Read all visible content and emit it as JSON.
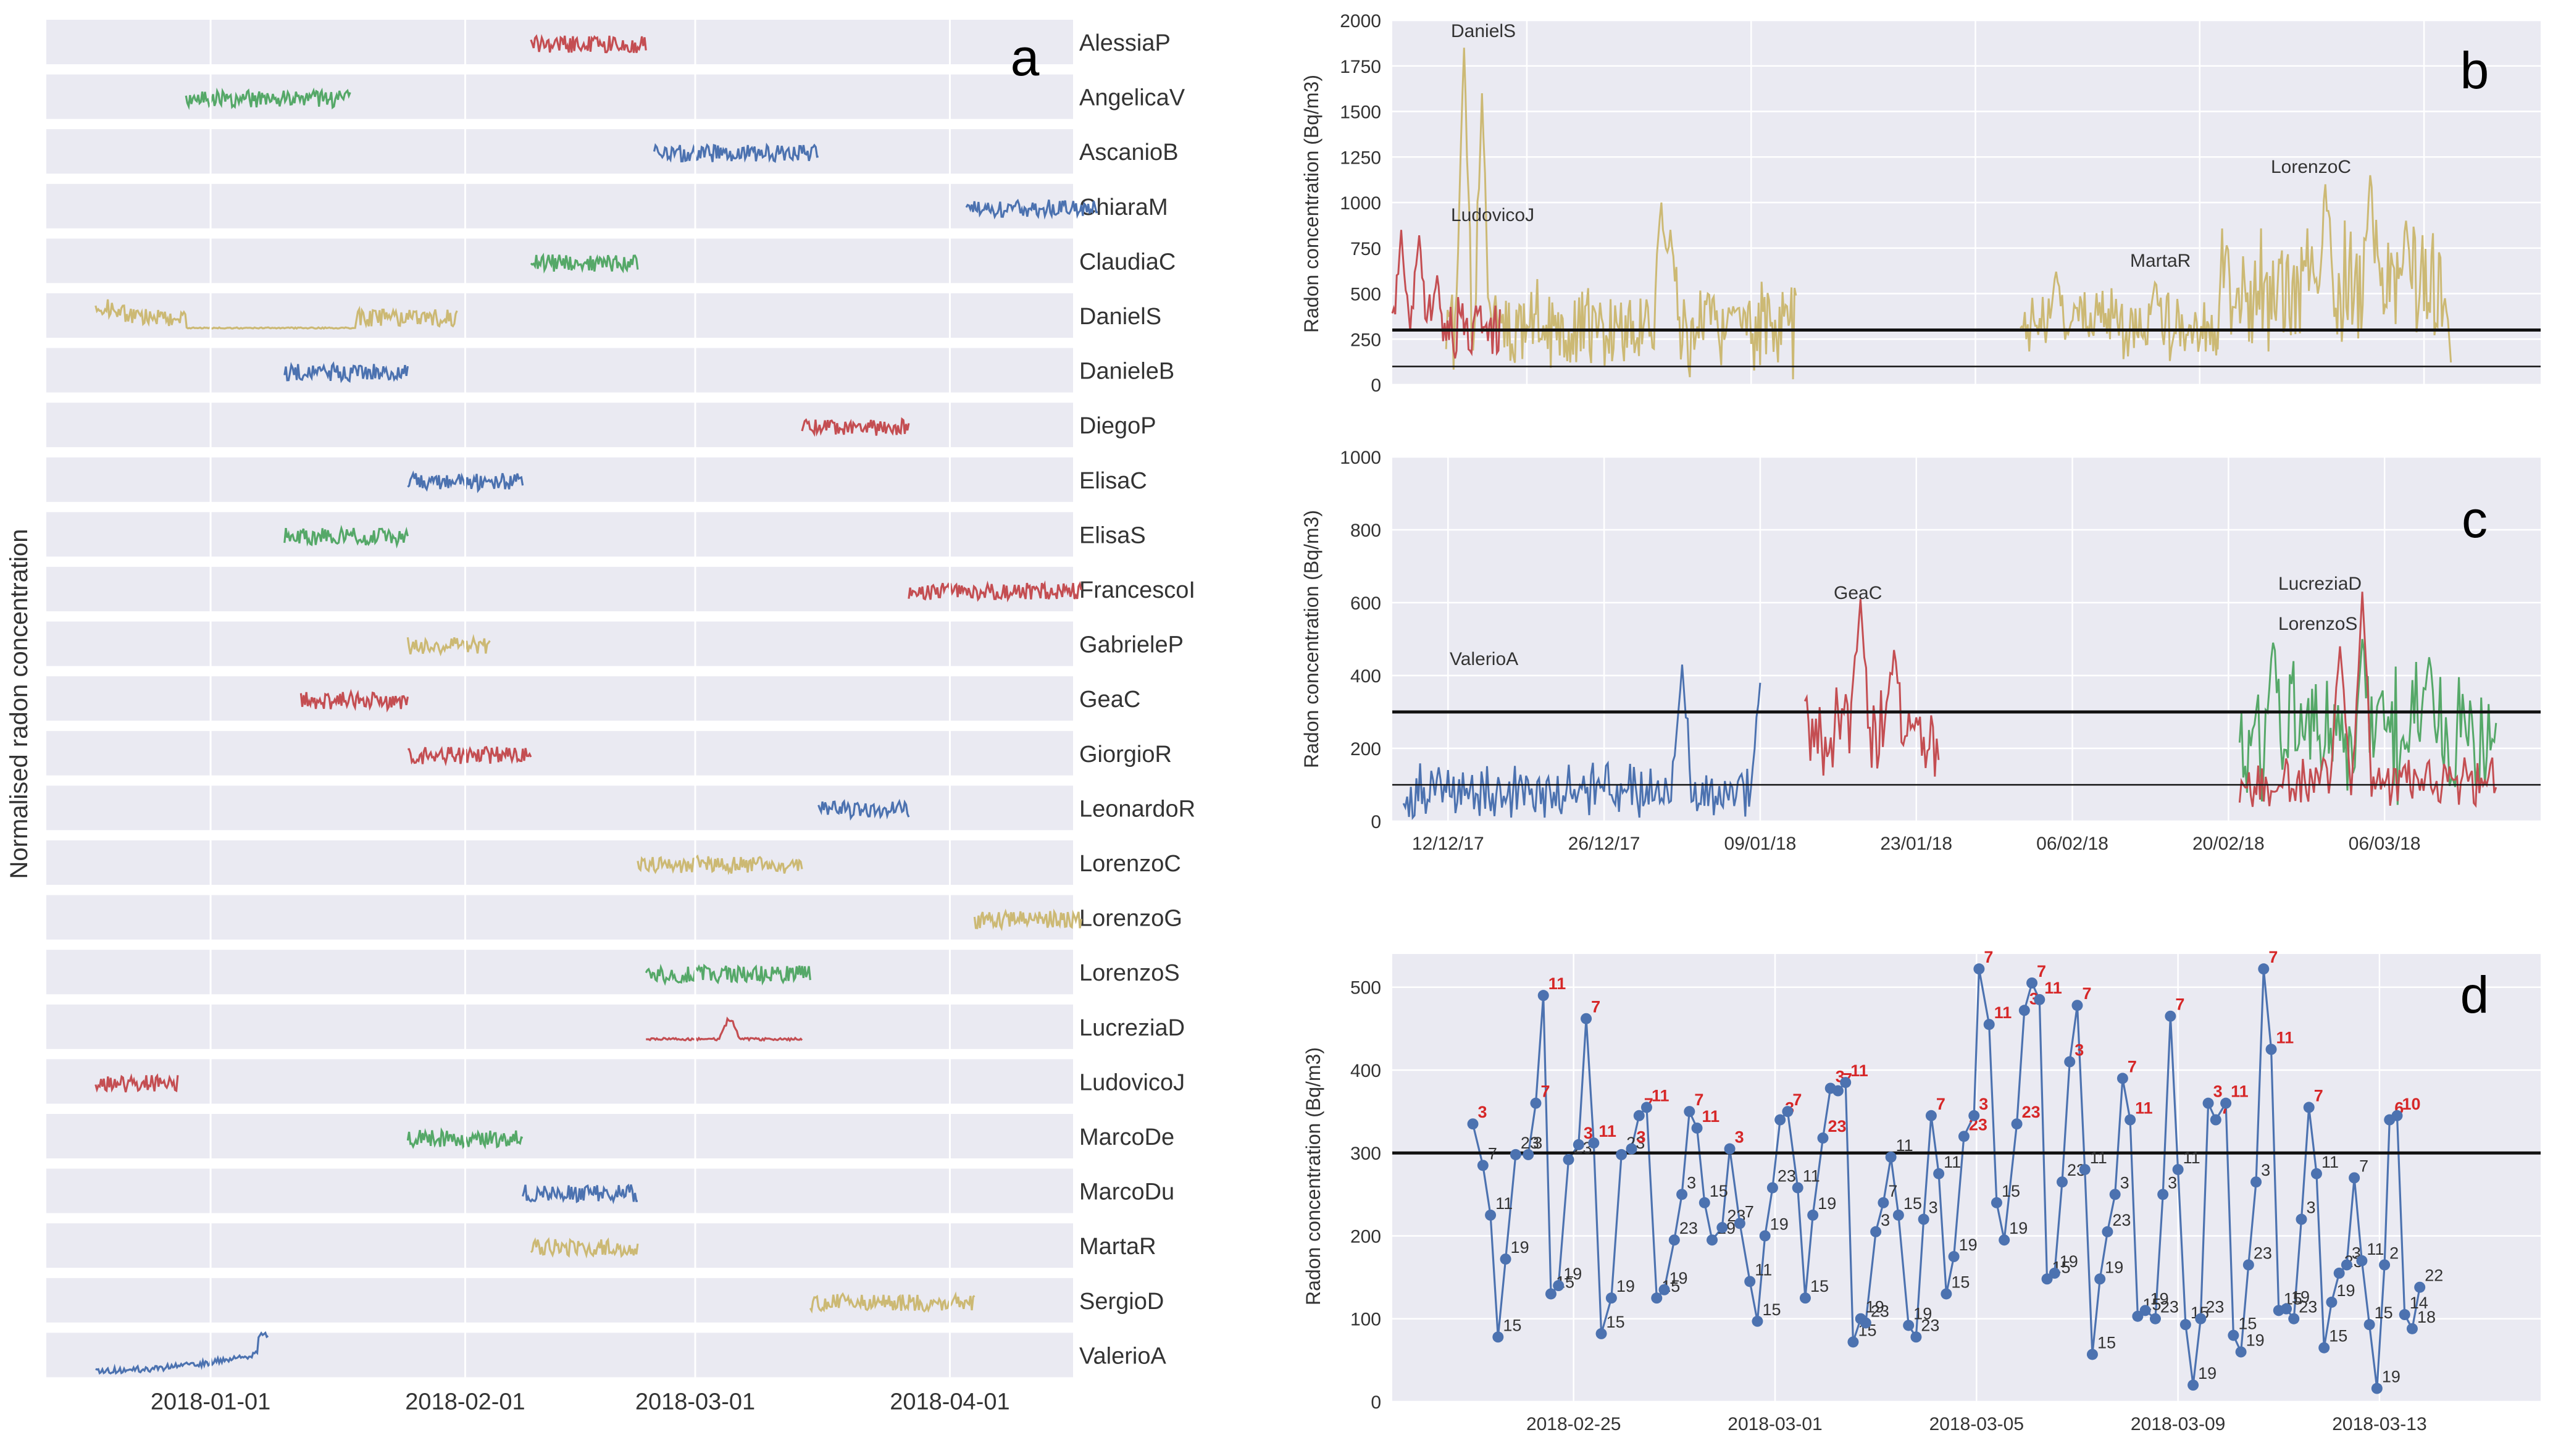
{
  "chart_data": [
    {
      "panel": "a",
      "type": "line",
      "ylabel": "Normalised radon concentration",
      "xlabel": "",
      "xlim": [
        "2017-12-12",
        "2018-04-16"
      ],
      "x_ticks": [
        "2018-01-01",
        "2018-02-01",
        "2018-03-01",
        "2018-04-01"
      ],
      "grid": true,
      "rows": [
        {
          "name": "AlessiaP",
          "color": "#c44e52",
          "start": "2018-02-09",
          "end": "2018-02-23"
        },
        {
          "name": "AngelicaV",
          "color": "#55a868",
          "start": "2017-12-29",
          "end": "2018-01-18"
        },
        {
          "name": "AscanioB",
          "color": "#4c72b0",
          "start": "2018-02-24",
          "end": "2018-03-16"
        },
        {
          "name": "ChiaraM",
          "color": "#4c72b0",
          "start": "2018-04-03",
          "end": "2018-04-19"
        },
        {
          "name": "ClaudiaC",
          "color": "#55a868",
          "start": "2018-02-09",
          "end": "2018-02-22"
        },
        {
          "name": "DanielS",
          "color": "#ccb974",
          "start": "2017-12-18",
          "end": "2018-01-31"
        },
        {
          "name": "DanieleB",
          "color": "#4c72b0",
          "start": "2018-01-10",
          "end": "2018-01-25"
        },
        {
          "name": "DiegoP",
          "color": "#c44e52",
          "start": "2018-03-14",
          "end": "2018-03-27"
        },
        {
          "name": "ElisaC",
          "color": "#4c72b0",
          "start": "2018-01-25",
          "end": "2018-02-08"
        },
        {
          "name": "ElisaS",
          "color": "#55a868",
          "start": "2018-01-10",
          "end": "2018-01-25"
        },
        {
          "name": "FrancescoI",
          "color": "#c44e52",
          "start": "2018-03-27",
          "end": "2018-04-17"
        },
        {
          "name": "GabrieleP",
          "color": "#ccb974",
          "start": "2018-01-25",
          "end": "2018-02-04"
        },
        {
          "name": "GeaC",
          "color": "#c44e52",
          "start": "2018-01-12",
          "end": "2018-01-25"
        },
        {
          "name": "GiorgioR",
          "color": "#c44e52",
          "start": "2018-01-25",
          "end": "2018-02-09"
        },
        {
          "name": "LeonardoR",
          "color": "#4c72b0",
          "start": "2018-03-16",
          "end": "2018-03-27"
        },
        {
          "name": "LorenzoC",
          "color": "#ccb974",
          "start": "2018-02-22",
          "end": "2018-03-14"
        },
        {
          "name": "LorenzoG",
          "color": "#ccb974",
          "start": "2018-04-04",
          "end": "2018-04-17"
        },
        {
          "name": "LorenzoS",
          "color": "#55a868",
          "start": "2018-02-23",
          "end": "2018-03-15"
        },
        {
          "name": "LucreziaD",
          "color": "#c44e52",
          "start": "2018-02-23",
          "end": "2018-03-14"
        },
        {
          "name": "LudovicoJ",
          "color": "#c44e52",
          "start": "2017-12-18",
          "end": "2017-12-28"
        },
        {
          "name": "MarcoDe",
          "color": "#55a868",
          "start": "2018-01-25",
          "end": "2018-02-08"
        },
        {
          "name": "MarcoDu",
          "color": "#4c72b0",
          "start": "2018-02-08",
          "end": "2018-02-22"
        },
        {
          "name": "MartaR",
          "color": "#ccb974",
          "start": "2018-02-09",
          "end": "2018-02-22"
        },
        {
          "name": "SergioD",
          "color": "#ccb974",
          "start": "2018-03-15",
          "end": "2018-04-04"
        },
        {
          "name": "ValerioA",
          "color": "#4c72b0",
          "start": "2017-12-18",
          "end": "2018-01-08"
        }
      ]
    },
    {
      "panel": "b",
      "type": "line",
      "ylabel": "Radon concentration (Bq/m3)",
      "ylim": [
        0,
        2000
      ],
      "y_ticks": [
        0,
        250,
        500,
        750,
        1000,
        1250,
        1500,
        1750,
        2000
      ],
      "thresholds": [
        300,
        100
      ],
      "x_range_days": [
        0,
        128
      ],
      "series": [
        {
          "name": "DanielS",
          "color": "#ccb974",
          "start_day": 6,
          "end_day": 45,
          "base": 320,
          "amp": 300,
          "peaks": [
            [
              8,
              1850
            ],
            [
              10,
              1600
            ],
            [
              30,
              1000
            ],
            [
              31,
              850
            ],
            [
              38,
              430
            ]
          ]
        },
        {
          "name": "LudovicoJ",
          "color": "#c44e52",
          "start_day": 0,
          "end_day": 12,
          "base": 320,
          "amp": 250,
          "peaks": [
            [
              1,
              850
            ],
            [
              3,
              820
            ],
            [
              5,
              600
            ]
          ]
        },
        {
          "name": "MartaR",
          "color": "#ccb974",
          "start_day": 70,
          "end_day": 92,
          "base": 330,
          "amp": 220,
          "peaks": [
            [
              74,
              620
            ],
            [
              85,
              560
            ]
          ]
        },
        {
          "name": "LorenzoC",
          "color": "#ccb974",
          "start_day": 92,
          "end_day": 118,
          "base": 520,
          "amp": 420,
          "peaks": [
            [
              104,
              1100
            ],
            [
              109,
              1150
            ],
            [
              113,
              900
            ]
          ]
        }
      ],
      "annotations": [
        "DanielS",
        "LudovicoJ",
        "MartaR",
        "LorenzoC"
      ]
    },
    {
      "panel": "c",
      "type": "line",
      "ylabel": "Radon concentration (Bq/m3)",
      "ylim": [
        0,
        1000
      ],
      "y_ticks": [
        0,
        200,
        400,
        600,
        800,
        1000
      ],
      "thresholds": [
        300,
        100
      ],
      "x_ticks": [
        "12/12/17",
        "26/12/17",
        "09/01/18",
        "23/01/18",
        "06/02/18",
        "20/02/18",
        "06/03/18"
      ],
      "x_range_days": [
        -5,
        98
      ],
      "series": [
        {
          "name": "ValerioA",
          "color": "#4c72b0",
          "start_day": -4,
          "end_day": 28,
          "base": 80,
          "amp": 90,
          "peaks": [
            [
              21,
              430
            ],
            [
              28,
              380
            ]
          ]
        },
        {
          "name": "GeaC",
          "color": "#c44e52",
          "start_day": 32,
          "end_day": 44,
          "base": 240,
          "amp": 140,
          "peaks": [
            [
              37,
              610
            ],
            [
              40,
              470
            ]
          ]
        },
        {
          "name": "LorenzoS",
          "color": "#55a868",
          "start_day": 71,
          "end_day": 94,
          "base": 230,
          "amp": 230,
          "peaks": [
            [
              74,
              490
            ],
            [
              82,
              500
            ],
            [
              88,
              450
            ]
          ]
        },
        {
          "name": "LucreziaD",
          "color": "#c44e52",
          "start_day": 71,
          "end_day": 94,
          "base": 110,
          "amp": 90,
          "peaks": [
            [
              82,
              630
            ],
            [
              80,
              480
            ]
          ]
        }
      ],
      "annotations": [
        "ValerioA",
        "GeaC",
        "LucreziaD",
        "LorenzoS"
      ]
    },
    {
      "panel": "d",
      "type": "line",
      "ylabel": "Radon concentration (Bq/m3)",
      "ylim": [
        0,
        540
      ],
      "y_ticks": [
        0,
        100,
        200,
        300,
        400,
        500
      ],
      "threshold": 300,
      "x_ticks": [
        "2018-02-25",
        "2018-03-01",
        "2018-03-05",
        "2018-03-09",
        "2018-03-13"
      ],
      "x_range_days": [
        -3.6,
        19.2
      ],
      "points": [
        [
          -2.0,
          335,
          "3"
        ],
        [
          -1.8,
          285,
          "7"
        ],
        [
          -1.65,
          225,
          "11"
        ],
        [
          -1.5,
          78,
          "15"
        ],
        [
          -1.35,
          172,
          "19"
        ],
        [
          -1.15,
          298,
          "23"
        ],
        [
          -0.9,
          298,
          "3"
        ],
        [
          -0.75,
          360,
          "7"
        ],
        [
          -0.6,
          490,
          "11"
        ],
        [
          -0.45,
          130,
          "15"
        ],
        [
          -0.3,
          140,
          "19"
        ],
        [
          -0.1,
          292,
          "23"
        ],
        [
          0.1,
          310,
          "3"
        ],
        [
          0.25,
          462,
          "7"
        ],
        [
          0.4,
          312,
          "11"
        ],
        [
          0.55,
          82,
          "15"
        ],
        [
          0.75,
          125,
          "19"
        ],
        [
          0.95,
          298,
          "23"
        ],
        [
          1.15,
          305,
          "3"
        ],
        [
          1.3,
          345,
          "7"
        ],
        [
          1.45,
          355,
          "11"
        ],
        [
          1.65,
          125,
          "15"
        ],
        [
          1.8,
          135,
          "19"
        ],
        [
          2.0,
          195,
          "23"
        ],
        [
          2.15,
          250,
          "3"
        ],
        [
          2.3,
          350,
          "7"
        ],
        [
          2.45,
          330,
          "11"
        ],
        [
          2.6,
          240,
          "15"
        ],
        [
          2.75,
          195,
          "19"
        ],
        [
          2.95,
          210,
          "23"
        ],
        [
          3.1,
          305,
          "3"
        ],
        [
          3.3,
          215,
          "7"
        ],
        [
          3.5,
          145,
          "11"
        ],
        [
          3.65,
          97,
          "15"
        ],
        [
          3.8,
          200,
          "19"
        ],
        [
          3.95,
          258,
          "23"
        ],
        [
          4.1,
          340,
          "3"
        ],
        [
          4.25,
          350,
          "7"
        ],
        [
          4.45,
          258,
          "11"
        ],
        [
          4.6,
          125,
          "15"
        ],
        [
          4.75,
          225,
          "19"
        ],
        [
          4.95,
          318,
          "23"
        ],
        [
          5.1,
          378,
          "3"
        ],
        [
          5.25,
          375,
          "7"
        ],
        [
          5.4,
          385,
          "11"
        ],
        [
          5.55,
          72,
          "15"
        ],
        [
          5.7,
          100,
          "19"
        ],
        [
          5.8,
          95,
          "23"
        ],
        [
          6.0,
          205,
          "3"
        ],
        [
          6.15,
          240,
          "7"
        ],
        [
          6.3,
          295,
          "11"
        ],
        [
          6.45,
          225,
          "15"
        ],
        [
          6.65,
          92,
          "19"
        ],
        [
          6.8,
          78,
          "23"
        ],
        [
          6.95,
          220,
          "3"
        ],
        [
          7.1,
          345,
          "7"
        ],
        [
          7.25,
          275,
          "11"
        ],
        [
          7.4,
          130,
          "15"
        ],
        [
          7.55,
          175,
          "19"
        ],
        [
          7.75,
          320,
          "23"
        ],
        [
          7.95,
          345,
          "3"
        ],
        [
          8.05,
          522,
          "7"
        ],
        [
          8.25,
          455,
          "11"
        ],
        [
          8.4,
          240,
          "15"
        ],
        [
          8.55,
          195,
          "19"
        ],
        [
          8.8,
          335,
          "23"
        ],
        [
          8.95,
          472,
          "3"
        ],
        [
          9.1,
          505,
          "7"
        ],
        [
          9.25,
          485,
          "11"
        ],
        [
          9.4,
          148,
          "15"
        ],
        [
          9.55,
          155,
          "19"
        ],
        [
          9.7,
          265,
          "23"
        ],
        [
          9.85,
          410,
          "3"
        ],
        [
          10.0,
          478,
          "7"
        ],
        [
          10.15,
          280,
          "11"
        ],
        [
          10.3,
          57,
          "15"
        ],
        [
          10.45,
          148,
          "19"
        ],
        [
          10.6,
          205,
          "23"
        ],
        [
          10.75,
          250,
          "3"
        ],
        [
          10.9,
          390,
          "7"
        ],
        [
          11.05,
          340,
          "11"
        ],
        [
          11.2,
          103,
          "15"
        ],
        [
          11.35,
          110,
          "19"
        ],
        [
          11.55,
          100,
          "23"
        ],
        [
          11.7,
          250,
          "3"
        ],
        [
          11.85,
          465,
          "7"
        ],
        [
          12.0,
          280,
          "11"
        ],
        [
          12.15,
          93,
          "15"
        ],
        [
          12.3,
          20,
          "19"
        ],
        [
          12.45,
          100,
          "23"
        ],
        [
          12.6,
          360,
          "3"
        ],
        [
          12.75,
          340,
          "7"
        ],
        [
          12.95,
          360,
          "11"
        ],
        [
          13.1,
          80,
          "15"
        ],
        [
          13.25,
          60,
          "19"
        ],
        [
          13.4,
          165,
          "23"
        ],
        [
          13.55,
          265,
          "3"
        ],
        [
          13.7,
          522,
          "7"
        ],
        [
          13.85,
          425,
          "11"
        ],
        [
          14.0,
          110,
          "15"
        ],
        [
          14.15,
          112,
          "19"
        ],
        [
          14.3,
          100,
          "23"
        ],
        [
          14.45,
          220,
          "3"
        ],
        [
          14.6,
          355,
          "7"
        ],
        [
          14.75,
          275,
          "11"
        ],
        [
          14.9,
          65,
          "15"
        ],
        [
          15.05,
          120,
          "19"
        ],
        [
          15.2,
          155,
          "23"
        ],
        [
          15.35,
          165,
          "3"
        ],
        [
          15.5,
          270,
          "7"
        ],
        [
          15.65,
          170,
          "11"
        ],
        [
          15.8,
          93,
          "15"
        ],
        [
          15.95,
          16,
          "19"
        ],
        [
          16.1,
          165,
          "2"
        ],
        [
          16.2,
          340,
          "6"
        ],
        [
          16.35,
          345,
          "10"
        ],
        [
          16.5,
          105,
          "14"
        ],
        [
          16.65,
          88,
          "18"
        ],
        [
          16.8,
          138,
          "22"
        ]
      ],
      "highlight_hours": [
        "3",
        "7",
        "11",
        "23",
        "6",
        "10"
      ]
    }
  ],
  "panel_letters": {
    "a": "a",
    "b": "b",
    "c": "c",
    "d": "d"
  },
  "annotation_color": "#d62728",
  "label_color_normal": "#333333"
}
